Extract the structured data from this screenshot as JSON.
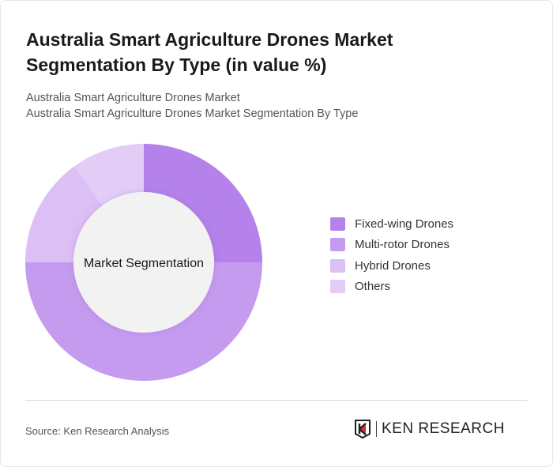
{
  "title": "Australia Smart Agriculture Drones Market Segmentation By Type (in value %)",
  "subtitle_lines": [
    "Australia Smart Agriculture Drones Market",
    "Australia Smart Agriculture Drones Market Segmentation By Type"
  ],
  "chart_data": {
    "type": "pie",
    "variant": "donut",
    "center_label": "Market Segmentation",
    "categories": [
      "Fixed-wing Drones",
      "Multi-rotor Drones",
      "Hybrid Drones",
      "Others"
    ],
    "values": [
      25,
      50,
      15,
      10
    ],
    "colors": [
      "#b482ea",
      "#c59bef",
      "#dbbff5",
      "#e3cdf7"
    ],
    "legend_position": "right"
  },
  "source": "Source: Ken Research Analysis",
  "logo_text": "KEN RESEARCH"
}
